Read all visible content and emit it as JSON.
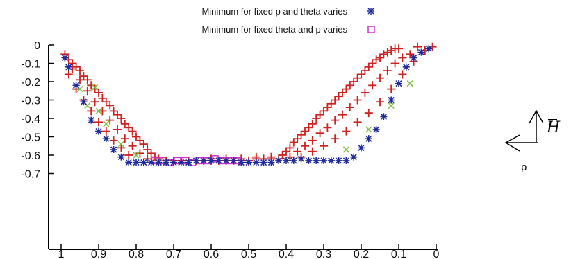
{
  "chart_data": {
    "type": "scatter",
    "x_ticks": [
      "1",
      "0.9",
      "0.8",
      "0.7",
      "0.6",
      "0.5",
      "0.4",
      "0.3",
      "0.2",
      "0.1",
      "0"
    ],
    "y_ticks": [
      "0",
      "-0.1",
      "-0.2",
      "-0.3",
      "-0.4",
      "-0.5",
      "-0.6",
      "-0.7"
    ],
    "xlim": [
      1,
      0
    ],
    "ylim": [
      -1.0,
      0
    ],
    "grid": false,
    "legend_position": "top-center",
    "series": [
      {
        "name": "Minimum for fixed p and theta varies",
        "marker": "asterisk",
        "color": "#1f2a9a",
        "points": [
          [
            0.99,
            -0.07
          ],
          [
            0.98,
            -0.12
          ],
          [
            0.96,
            -0.22
          ],
          [
            0.94,
            -0.31
          ],
          [
            0.92,
            -0.41
          ],
          [
            0.9,
            -0.47
          ],
          [
            0.88,
            -0.51
          ],
          [
            0.86,
            -0.57
          ],
          [
            0.84,
            -0.61
          ],
          [
            0.82,
            -0.64
          ],
          [
            0.8,
            -0.64
          ],
          [
            0.78,
            -0.64
          ],
          [
            0.76,
            -0.64
          ],
          [
            0.74,
            -0.64
          ],
          [
            0.72,
            -0.64
          ],
          [
            0.7,
            -0.64
          ],
          [
            0.68,
            -0.64
          ],
          [
            0.66,
            -0.64
          ],
          [
            0.64,
            -0.63
          ],
          [
            0.62,
            -0.63
          ],
          [
            0.6,
            -0.63
          ],
          [
            0.58,
            -0.63
          ],
          [
            0.56,
            -0.63
          ],
          [
            0.54,
            -0.63
          ],
          [
            0.52,
            -0.64
          ],
          [
            0.5,
            -0.64
          ],
          [
            0.48,
            -0.64
          ],
          [
            0.46,
            -0.64
          ],
          [
            0.44,
            -0.64
          ],
          [
            0.42,
            -0.63
          ],
          [
            0.4,
            -0.63
          ],
          [
            0.38,
            -0.63
          ],
          [
            0.36,
            -0.62
          ],
          [
            0.34,
            -0.63
          ],
          [
            0.32,
            -0.63
          ],
          [
            0.3,
            -0.63
          ],
          [
            0.28,
            -0.63
          ],
          [
            0.26,
            -0.63
          ],
          [
            0.24,
            -0.63
          ],
          [
            0.22,
            -0.61
          ],
          [
            0.2,
            -0.56
          ],
          [
            0.18,
            -0.51
          ],
          [
            0.16,
            -0.46
          ],
          [
            0.14,
            -0.39
          ],
          [
            0.12,
            -0.3
          ],
          [
            0.1,
            -0.21
          ],
          [
            0.08,
            -0.12
          ],
          [
            0.06,
            -0.07
          ],
          [
            0.04,
            -0.04
          ],
          [
            0.02,
            -0.02
          ]
        ]
      },
      {
        "name": "Minimum for fixed theta and p varies",
        "marker": "open-square",
        "color": "#cc33cc",
        "points": [
          [
            0.75,
            -0.63
          ],
          [
            0.73,
            -0.63
          ],
          [
            0.71,
            -0.64
          ],
          [
            0.69,
            -0.63
          ],
          [
            0.67,
            -0.63
          ],
          [
            0.65,
            -0.64
          ],
          [
            0.63,
            -0.63
          ],
          [
            0.61,
            -0.63
          ],
          [
            0.59,
            -0.62
          ],
          [
            0.57,
            -0.63
          ],
          [
            0.55,
            -0.63
          ],
          [
            0.53,
            -0.63
          ]
        ]
      },
      {
        "name": "",
        "marker": "plus",
        "color": "#d02020",
        "points": [
          [
            0.99,
            -0.05
          ],
          [
            0.98,
            -0.08
          ],
          [
            0.97,
            -0.1
          ],
          [
            0.96,
            -0.12
          ],
          [
            0.95,
            -0.14
          ],
          [
            0.94,
            -0.17
          ],
          [
            0.93,
            -0.19
          ],
          [
            0.92,
            -0.22
          ],
          [
            0.91,
            -0.24
          ],
          [
            0.9,
            -0.26
          ],
          [
            0.89,
            -0.29
          ],
          [
            0.88,
            -0.31
          ],
          [
            0.87,
            -0.33
          ],
          [
            0.86,
            -0.36
          ],
          [
            0.85,
            -0.38
          ],
          [
            0.84,
            -0.4
          ],
          [
            0.83,
            -0.43
          ],
          [
            0.82,
            -0.45
          ],
          [
            0.81,
            -0.47
          ],
          [
            0.8,
            -0.5
          ],
          [
            0.79,
            -0.52
          ],
          [
            0.78,
            -0.54
          ],
          [
            0.77,
            -0.57
          ],
          [
            0.76,
            -0.59
          ],
          [
            0.75,
            -0.61
          ],
          [
            0.74,
            -0.62
          ],
          [
            0.72,
            -0.63
          ],
          [
            0.7,
            -0.63
          ],
          [
            0.68,
            -0.63
          ],
          [
            0.66,
            -0.63
          ],
          [
            0.64,
            -0.63
          ],
          [
            0.62,
            -0.63
          ],
          [
            0.6,
            -0.63
          ],
          [
            0.58,
            -0.63
          ],
          [
            0.56,
            -0.63
          ],
          [
            0.54,
            -0.63
          ],
          [
            0.52,
            -0.63
          ],
          [
            0.5,
            -0.63
          ],
          [
            0.48,
            -0.62
          ],
          [
            0.46,
            -0.62
          ],
          [
            0.44,
            -0.62
          ],
          [
            0.42,
            -0.62
          ],
          [
            0.41,
            -0.6
          ],
          [
            0.4,
            -0.58
          ],
          [
            0.39,
            -0.56
          ],
          [
            0.38,
            -0.53
          ],
          [
            0.37,
            -0.51
          ],
          [
            0.36,
            -0.49
          ],
          [
            0.35,
            -0.47
          ],
          [
            0.34,
            -0.45
          ],
          [
            0.33,
            -0.43
          ],
          [
            0.32,
            -0.4
          ],
          [
            0.31,
            -0.38
          ],
          [
            0.3,
            -0.36
          ],
          [
            0.29,
            -0.34
          ],
          [
            0.28,
            -0.32
          ],
          [
            0.27,
            -0.3
          ],
          [
            0.26,
            -0.28
          ],
          [
            0.25,
            -0.26
          ],
          [
            0.24,
            -0.24
          ],
          [
            0.23,
            -0.22
          ],
          [
            0.22,
            -0.2
          ],
          [
            0.21,
            -0.18
          ],
          [
            0.2,
            -0.16
          ],
          [
            0.19,
            -0.14
          ],
          [
            0.18,
            -0.12
          ],
          [
            0.17,
            -0.1
          ],
          [
            0.16,
            -0.08
          ],
          [
            0.15,
            -0.07
          ],
          [
            0.14,
            -0.05
          ],
          [
            0.13,
            -0.04
          ],
          [
            0.12,
            -0.03
          ],
          [
            0.11,
            -0.02
          ],
          [
            0.1,
            -0.02
          ],
          [
            0.05,
            -0.01
          ],
          [
            0.97,
            -0.13
          ],
          [
            0.95,
            -0.19
          ],
          [
            0.93,
            -0.25
          ],
          [
            0.91,
            -0.31
          ],
          [
            0.89,
            -0.36
          ],
          [
            0.87,
            -0.41
          ],
          [
            0.85,
            -0.46
          ],
          [
            0.83,
            -0.51
          ],
          [
            0.81,
            -0.55
          ],
          [
            0.79,
            -0.59
          ],
          [
            0.77,
            -0.62
          ],
          [
            0.98,
            -0.16
          ],
          [
            0.96,
            -0.24
          ],
          [
            0.94,
            -0.3
          ],
          [
            0.92,
            -0.36
          ],
          [
            0.9,
            -0.42
          ],
          [
            0.88,
            -0.47
          ],
          [
            0.86,
            -0.52
          ],
          [
            0.84,
            -0.56
          ],
          [
            0.82,
            -0.6
          ],
          [
            0.39,
            -0.61
          ],
          [
            0.37,
            -0.58
          ],
          [
            0.35,
            -0.55
          ],
          [
            0.33,
            -0.52
          ],
          [
            0.31,
            -0.48
          ],
          [
            0.29,
            -0.45
          ],
          [
            0.27,
            -0.41
          ],
          [
            0.25,
            -0.38
          ],
          [
            0.23,
            -0.34
          ],
          [
            0.21,
            -0.3
          ],
          [
            0.19,
            -0.26
          ],
          [
            0.17,
            -0.22
          ],
          [
            0.15,
            -0.18
          ],
          [
            0.13,
            -0.14
          ],
          [
            0.11,
            -0.1
          ],
          [
            0.09,
            -0.07
          ],
          [
            0.07,
            -0.05
          ],
          [
            0.36,
            -0.61
          ],
          [
            0.33,
            -0.58
          ],
          [
            0.3,
            -0.55
          ],
          [
            0.27,
            -0.51
          ],
          [
            0.24,
            -0.47
          ],
          [
            0.21,
            -0.42
          ],
          [
            0.18,
            -0.37
          ],
          [
            0.15,
            -0.31
          ],
          [
            0.12,
            -0.24
          ],
          [
            0.09,
            -0.16
          ],
          [
            0.06,
            -0.09
          ],
          [
            0.03,
            -0.03
          ],
          [
            0.01,
            -0.01
          ],
          [
            0.6,
            -0.62
          ],
          [
            0.56,
            -0.62
          ],
          [
            0.52,
            -0.62
          ],
          [
            0.48,
            -0.61
          ],
          [
            0.44,
            -0.61
          ]
        ]
      },
      {
        "name": "",
        "marker": "cross",
        "color": "#7fbf3f",
        "points": [
          [
            0.95,
            -0.24
          ],
          [
            0.93,
            -0.33
          ],
          [
            0.91,
            -0.23
          ],
          [
            0.9,
            -0.36
          ],
          [
            0.88,
            -0.43
          ],
          [
            0.84,
            -0.54
          ],
          [
            0.8,
            -0.6
          ],
          [
            0.24,
            -0.57
          ],
          [
            0.18,
            -0.46
          ],
          [
            0.12,
            -0.33
          ],
          [
            0.07,
            -0.21
          ]
        ]
      }
    ]
  },
  "side_labels": {
    "hbar": "H",
    "p": "p"
  }
}
